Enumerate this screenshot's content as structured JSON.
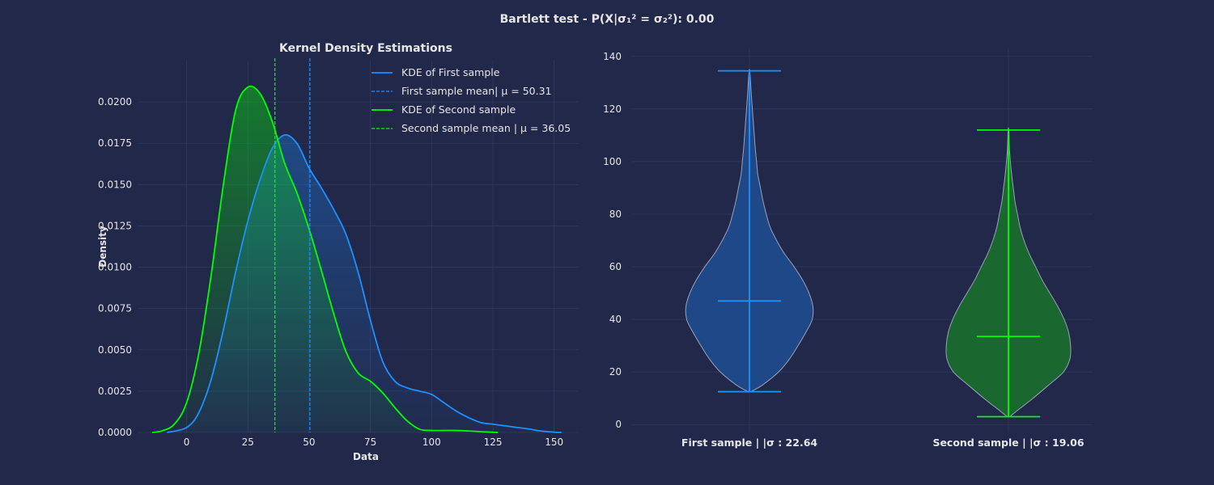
{
  "suptitle": "Bartlett test - P(X|σ₁² = σ₂²): 0.00",
  "colors": {
    "background": "#21284a",
    "grid": "#2f3a5e",
    "text": "#e6e6e6",
    "first": "#1e90ff",
    "second": "#00ff00",
    "violet_edge": "#9aa0b8"
  },
  "chart_data": [
    {
      "type": "line",
      "title": "Kernel Density Estimations",
      "xlabel": "Data",
      "ylabel": "Density",
      "xlim": [
        -20,
        160
      ],
      "ylim": [
        0,
        0.0225
      ],
      "xticks": [
        0,
        25,
        50,
        75,
        100,
        125,
        150
      ],
      "yticks": [
        0.0,
        0.0025,
        0.005,
        0.0075,
        0.01,
        0.0125,
        0.015,
        0.0175,
        0.02
      ],
      "ytick_labels": [
        "0.0000",
        "0.0025",
        "0.0050",
        "0.0075",
        "0.0100",
        "0.0125",
        "0.0150",
        "0.0175",
        "0.0200"
      ],
      "grid": true,
      "legend_position": "top-right",
      "legend": [
        {
          "label": "KDE of First sample",
          "style": "solid",
          "color": "#1e90ff"
        },
        {
          "label": "First sample mean| μ = 50.31",
          "style": "dashed",
          "color": "#1e90ff"
        },
        {
          "label": "KDE of Second sample",
          "style": "solid",
          "color": "#00ff00"
        },
        {
          "label": "Second sample mean | μ = 36.05",
          "style": "dashed",
          "color": "#00ff00"
        }
      ],
      "series": [
        {
          "name": "KDE of First sample",
          "color": "#1e90ff",
          "points": [
            [
              -8,
              0
            ],
            [
              0,
              0.0003
            ],
            [
              5,
              0.0012
            ],
            [
              10,
              0.0032
            ],
            [
              15,
              0.0062
            ],
            [
              20,
              0.0097
            ],
            [
              25,
              0.0128
            ],
            [
              30,
              0.0153
            ],
            [
              35,
              0.0172
            ],
            [
              40,
              0.018
            ],
            [
              45,
              0.0175
            ],
            [
              50,
              0.016
            ],
            [
              55,
              0.0148
            ],
            [
              60,
              0.0135
            ],
            [
              65,
              0.012
            ],
            [
              70,
              0.0097
            ],
            [
              75,
              0.0068
            ],
            [
              80,
              0.0043
            ],
            [
              85,
              0.0031
            ],
            [
              90,
              0.0027
            ],
            [
              95,
              0.0025
            ],
            [
              100,
              0.0023
            ],
            [
              105,
              0.0018
            ],
            [
              110,
              0.0013
            ],
            [
              115,
              0.0009
            ],
            [
              120,
              0.0006
            ],
            [
              125,
              0.0005
            ],
            [
              130,
              0.0004
            ],
            [
              135,
              0.0003
            ],
            [
              140,
              0.0002
            ],
            [
              145,
              8e-05
            ],
            [
              150,
              2e-05
            ],
            [
              153,
              0
            ]
          ]
        },
        {
          "name": "KDE of Second sample",
          "color": "#00ff00",
          "points": [
            [
              -14,
              0
            ],
            [
              -10,
              0.0001
            ],
            [
              -5,
              0.0005
            ],
            [
              0,
              0.0018
            ],
            [
              5,
              0.0048
            ],
            [
              10,
              0.0095
            ],
            [
              15,
              0.015
            ],
            [
              20,
              0.0195
            ],
            [
              25,
              0.0209
            ],
            [
              30,
              0.0205
            ],
            [
              35,
              0.0188
            ],
            [
              40,
              0.0163
            ],
            [
              45,
              0.0145
            ],
            [
              50,
              0.0123
            ],
            [
              55,
              0.0098
            ],
            [
              60,
              0.0072
            ],
            [
              65,
              0.0049
            ],
            [
              70,
              0.0036
            ],
            [
              75,
              0.0031
            ],
            [
              80,
              0.0024
            ],
            [
              85,
              0.0015
            ],
            [
              90,
              0.0007
            ],
            [
              95,
              0.0002
            ],
            [
              100,
              0.00012
            ],
            [
              105,
              0.00012
            ],
            [
              110,
              0.00012
            ],
            [
              115,
              9e-05
            ],
            [
              120,
              5e-05
            ],
            [
              127,
              0
            ]
          ]
        }
      ],
      "mean_lines": [
        {
          "name": "First sample mean",
          "x": 50.31,
          "color": "#1e90ff"
        },
        {
          "name": "Second sample mean",
          "x": 36.05,
          "color": "#00ff00"
        }
      ]
    },
    {
      "type": "violin",
      "ylim": [
        -3,
        143
      ],
      "yticks": [
        0,
        20,
        40,
        60,
        80,
        100,
        120,
        140
      ],
      "grid": true,
      "categories": [
        "First sample | |σ : 22.64",
        "Second sample | |σ : 19.06"
      ],
      "violins": [
        {
          "label": "First sample | |σ : 22.64",
          "color": "#1e90ff",
          "fill": "#1f4a8a",
          "min": 12.5,
          "max": 134.5,
          "median": 47,
          "profile": [
            [
              12.5,
              0.02
            ],
            [
              15,
              0.2
            ],
            [
              20,
              0.45
            ],
            [
              25,
              0.62
            ],
            [
              30,
              0.75
            ],
            [
              35,
              0.87
            ],
            [
              40,
              0.97
            ],
            [
              45,
              0.98
            ],
            [
              50,
              0.92
            ],
            [
              55,
              0.82
            ],
            [
              60,
              0.69
            ],
            [
              65,
              0.54
            ],
            [
              70,
              0.42
            ],
            [
              75,
              0.32
            ],
            [
              80,
              0.26
            ],
            [
              85,
              0.21
            ],
            [
              90,
              0.17
            ],
            [
              95,
              0.13
            ],
            [
              100,
              0.11
            ],
            [
              105,
              0.09
            ],
            [
              110,
              0.075
            ],
            [
              115,
              0.06
            ],
            [
              120,
              0.045
            ],
            [
              125,
              0.03
            ],
            [
              130,
              0.018
            ],
            [
              134.5,
              0.005
            ]
          ]
        },
        {
          "label": "Second sample | |σ : 19.06",
          "color": "#00ff00",
          "fill": "#1a6b2e",
          "min": 3,
          "max": 112,
          "median": 33.5,
          "profile": [
            [
              3,
              0.02
            ],
            [
              5,
              0.12
            ],
            [
              10,
              0.38
            ],
            [
              15,
              0.62
            ],
            [
              20,
              0.85
            ],
            [
              25,
              0.95
            ],
            [
              30,
              0.96
            ],
            [
              35,
              0.93
            ],
            [
              40,
              0.86
            ],
            [
              45,
              0.76
            ],
            [
              50,
              0.64
            ],
            [
              55,
              0.52
            ],
            [
              60,
              0.42
            ],
            [
              65,
              0.32
            ],
            [
              70,
              0.24
            ],
            [
              75,
              0.18
            ],
            [
              80,
              0.14
            ],
            [
              85,
              0.1
            ],
            [
              90,
              0.075
            ],
            [
              95,
              0.05
            ],
            [
              100,
              0.03
            ],
            [
              105,
              0.015
            ],
            [
              112,
              0.005
            ]
          ]
        }
      ]
    }
  ]
}
